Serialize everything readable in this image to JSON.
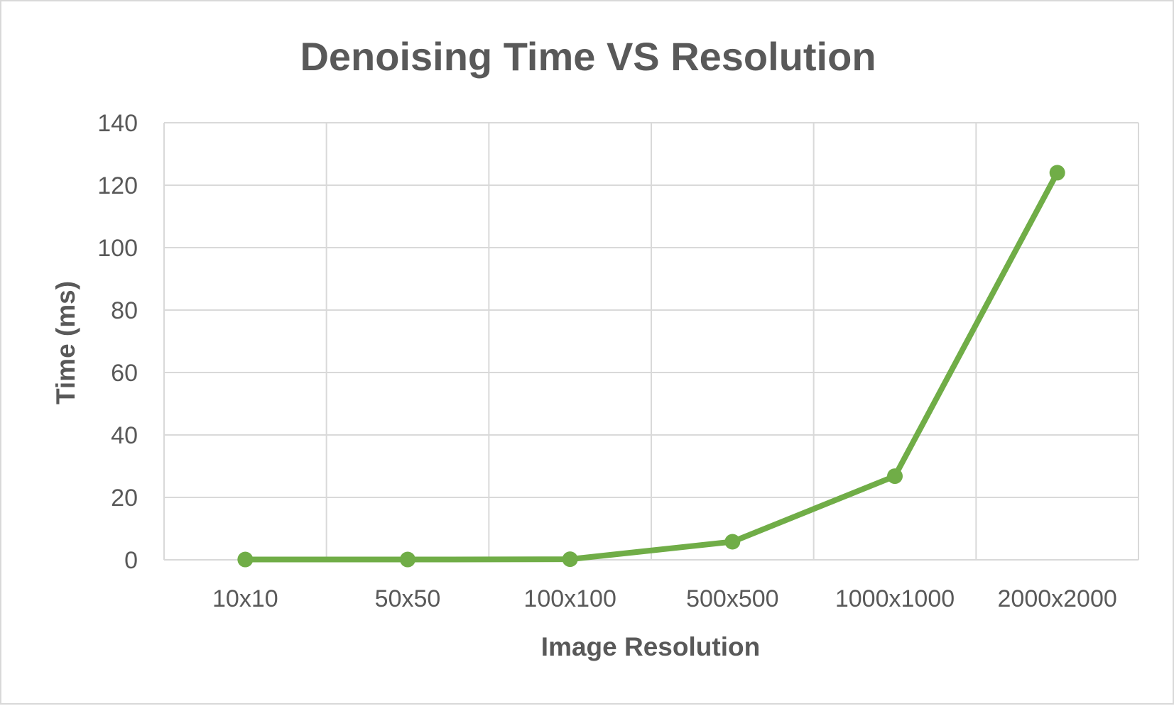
{
  "chart_data": {
    "type": "line",
    "title": "Denoising Time VS Resolution",
    "xlabel": "Image Resolution",
    "ylabel": "Time (ms)",
    "categories": [
      "10x10",
      "50x50",
      "100x100",
      "500x500",
      "1000x1000",
      "2000x2000"
    ],
    "series": [
      {
        "values": [
          0.1,
          0.1,
          0.2,
          5.8,
          26.8,
          124
        ]
      }
    ],
    "ylim": [
      0,
      140
    ],
    "yticks": [
      "0",
      "20",
      "40",
      "60",
      "80",
      "100",
      "120",
      "140"
    ],
    "grid": true,
    "legend": "none",
    "colors": {
      "series": "#70ad47",
      "grid": "#d9d9d9",
      "text": "#595959"
    }
  }
}
